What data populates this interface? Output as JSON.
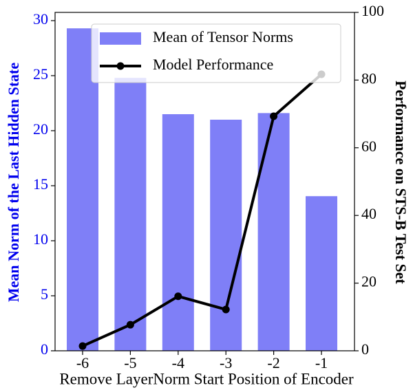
{
  "chart_data": {
    "type": "bar",
    "xlabel": "Remove LayerNorm Start Position of Encoder",
    "ylabel": "Mean Norm of the Last Hidden State",
    "y2label": "Performance on STS-B Test Set",
    "categories": [
      "-6",
      "-5",
      "-4",
      "-3",
      "-2",
      "-1"
    ],
    "series": [
      {
        "name": "Mean of Tensor Norms",
        "type": "bar",
        "color": "#7f7ff7",
        "axis": "y",
        "values": [
          29.3,
          24.8,
          21.5,
          21.0,
          21.6,
          14.05
        ]
      },
      {
        "name": "Model Performance",
        "type": "line",
        "color": "#000000",
        "axis": "y2",
        "values": [
          1.4,
          7.7,
          16.1,
          12.2,
          69.3,
          81.7
        ]
      }
    ],
    "ylim": [
      0,
      30.75
    ],
    "yticks": [
      0,
      5,
      10,
      15,
      20,
      25,
      30
    ],
    "y2lim": [
      0,
      100
    ],
    "y2ticks": [
      0,
      20,
      40,
      60,
      80,
      100
    ],
    "ycolor": "#0000ee",
    "legend": "upper center"
  }
}
